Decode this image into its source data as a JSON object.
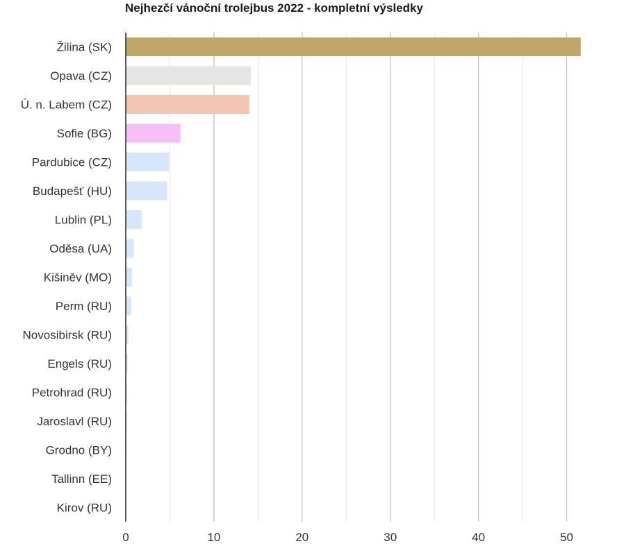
{
  "chart_data": {
    "type": "bar",
    "orientation": "horizontal",
    "title": "Nejhezčí vánoční trolejbus 2022 - kompletní výsledky",
    "xlabel": "",
    "ylabel": "",
    "xlim": [
      0,
      52
    ],
    "xticks": [
      0,
      10,
      20,
      30,
      40,
      50
    ],
    "grid": true,
    "categories": [
      "Žilina (SK)",
      "Opava (CZ)",
      "Ú. n. Labem (CZ)",
      "Sofie (BG)",
      "Pardubice (CZ)",
      "Budapešť (HU)",
      "Lublin (PL)",
      "Oděsa (UA)",
      "Kišiněv (MO)",
      "Perm (RU)",
      "Novosibirsk (RU)",
      "Engels (RU)",
      "Petrohrad (RU)",
      "Jaroslavl (RU)",
      "Grodno (BY)",
      "Tallinn (EE)",
      "Kirov (RU)"
    ],
    "values": [
      51.6,
      14.2,
      14.0,
      6.2,
      4.9,
      4.7,
      1.8,
      0.9,
      0.7,
      0.6,
      0.3,
      0.2,
      0.15,
      0.1,
      0.05,
      0.03,
      0.02
    ],
    "colors": [
      "#c0a769",
      "#e5e5e3",
      "#f3c4b1",
      "#f7bdf7",
      "#d6e7fb",
      "#d6e7fb",
      "#d6e7fb",
      "#d6e7fb",
      "#d6e7fb",
      "#d6e7fb",
      "#d6e7fb",
      "#d6e7fb",
      "#d6e7fb",
      "#d6e7fb",
      "#d6e7fb",
      "#d6e7fb",
      "#d6e7fb"
    ]
  }
}
